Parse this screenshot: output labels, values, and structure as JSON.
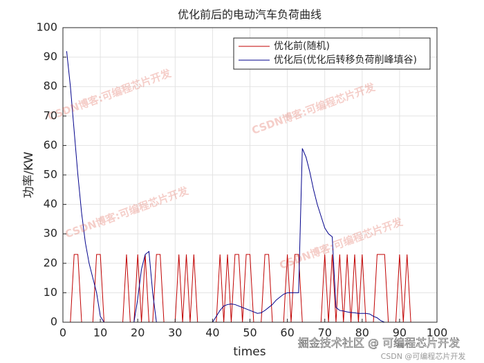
{
  "chart_data": {
    "type": "line",
    "title": "优化前后的电动汽车负荷曲线",
    "x_label": "times",
    "y_label": "功率/KW",
    "x": [
      1,
      2,
      3,
      4,
      5,
      6,
      7,
      8,
      9,
      10,
      11,
      12,
      13,
      14,
      15,
      16,
      17,
      18,
      19,
      20,
      21,
      22,
      23,
      24,
      25,
      26,
      27,
      28,
      29,
      30,
      31,
      32,
      33,
      34,
      35,
      36,
      37,
      38,
      39,
      40,
      41,
      42,
      43,
      44,
      45,
      46,
      47,
      48,
      49,
      50,
      51,
      52,
      53,
      54,
      55,
      56,
      57,
      58,
      59,
      60,
      61,
      62,
      63,
      64,
      65,
      66,
      67,
      68,
      69,
      70,
      71,
      72,
      73,
      74,
      75,
      76,
      77,
      78,
      79,
      80,
      81,
      82,
      83,
      84,
      85,
      86,
      87,
      88,
      89,
      90,
      91,
      92,
      93,
      94,
      95,
      96
    ],
    "series": [
      {
        "name": "优化前(随机)",
        "color": "#c00000",
        "values": [
          0,
          0,
          23,
          23,
          0,
          0,
          0,
          0,
          23,
          23,
          0,
          0,
          0,
          0,
          0,
          0,
          23,
          0,
          0,
          23,
          0,
          23,
          0,
          0,
          23,
          23,
          0,
          0,
          0,
          0,
          23,
          0,
          23,
          0,
          23,
          0,
          0,
          0,
          0,
          0,
          0,
          23,
          0,
          23,
          0,
          23,
          23,
          0,
          23,
          23,
          0,
          0,
          0,
          23,
          23,
          0,
          0,
          0,
          0,
          23,
          0,
          23,
          23,
          0,
          0,
          0,
          0,
          0,
          0,
          23,
          0,
          23,
          0,
          23,
          0,
          23,
          0,
          23,
          0,
          23,
          0,
          0,
          0,
          23,
          23,
          23,
          0,
          0,
          0,
          23,
          0,
          23,
          0,
          0,
          0,
          0
        ]
      },
      {
        "name": "优化后(优化后转移负荷削峰填谷)",
        "color": "#00008b",
        "values": [
          92,
          80,
          65,
          50,
          37,
          27,
          20,
          15,
          10,
          2,
          0,
          0,
          0,
          0,
          0,
          0,
          0,
          0,
          0,
          8,
          18,
          23,
          24,
          10,
          0,
          0,
          0,
          0,
          0,
          0,
          0,
          0,
          0,
          0,
          0,
          0,
          0,
          0,
          0,
          0,
          2,
          4,
          5.5,
          6,
          6.2,
          6,
          5.5,
          5,
          4.5,
          4,
          3.5,
          3,
          3.2,
          4,
          5,
          6,
          7.5,
          8.5,
          9.5,
          10,
          10,
          10,
          10,
          59,
          56,
          51,
          45,
          40,
          36,
          32,
          30,
          29,
          5,
          4,
          3.8,
          3.5,
          3.3,
          3.2,
          3,
          3,
          3,
          2.8,
          2,
          1.5,
          0.5,
          0,
          0,
          0,
          0,
          0,
          0,
          0,
          0,
          0,
          0,
          0
        ]
      }
    ],
    "xlim": [
      0,
      100
    ],
    "xticks": [
      0,
      10,
      20,
      30,
      40,
      50,
      60,
      70,
      80,
      90,
      100
    ],
    "ylim": [
      0,
      100
    ],
    "yticks": [
      0,
      10,
      20,
      30,
      40,
      50,
      60,
      70,
      80,
      90,
      100
    ],
    "grid": true,
    "legend": "top-right",
    "watermarks": [
      "CSDN博客:可编程芯片开发",
      "掘金技术社区 @ 可编程芯片开发",
      "CSDN @可编程芯片开发"
    ]
  }
}
